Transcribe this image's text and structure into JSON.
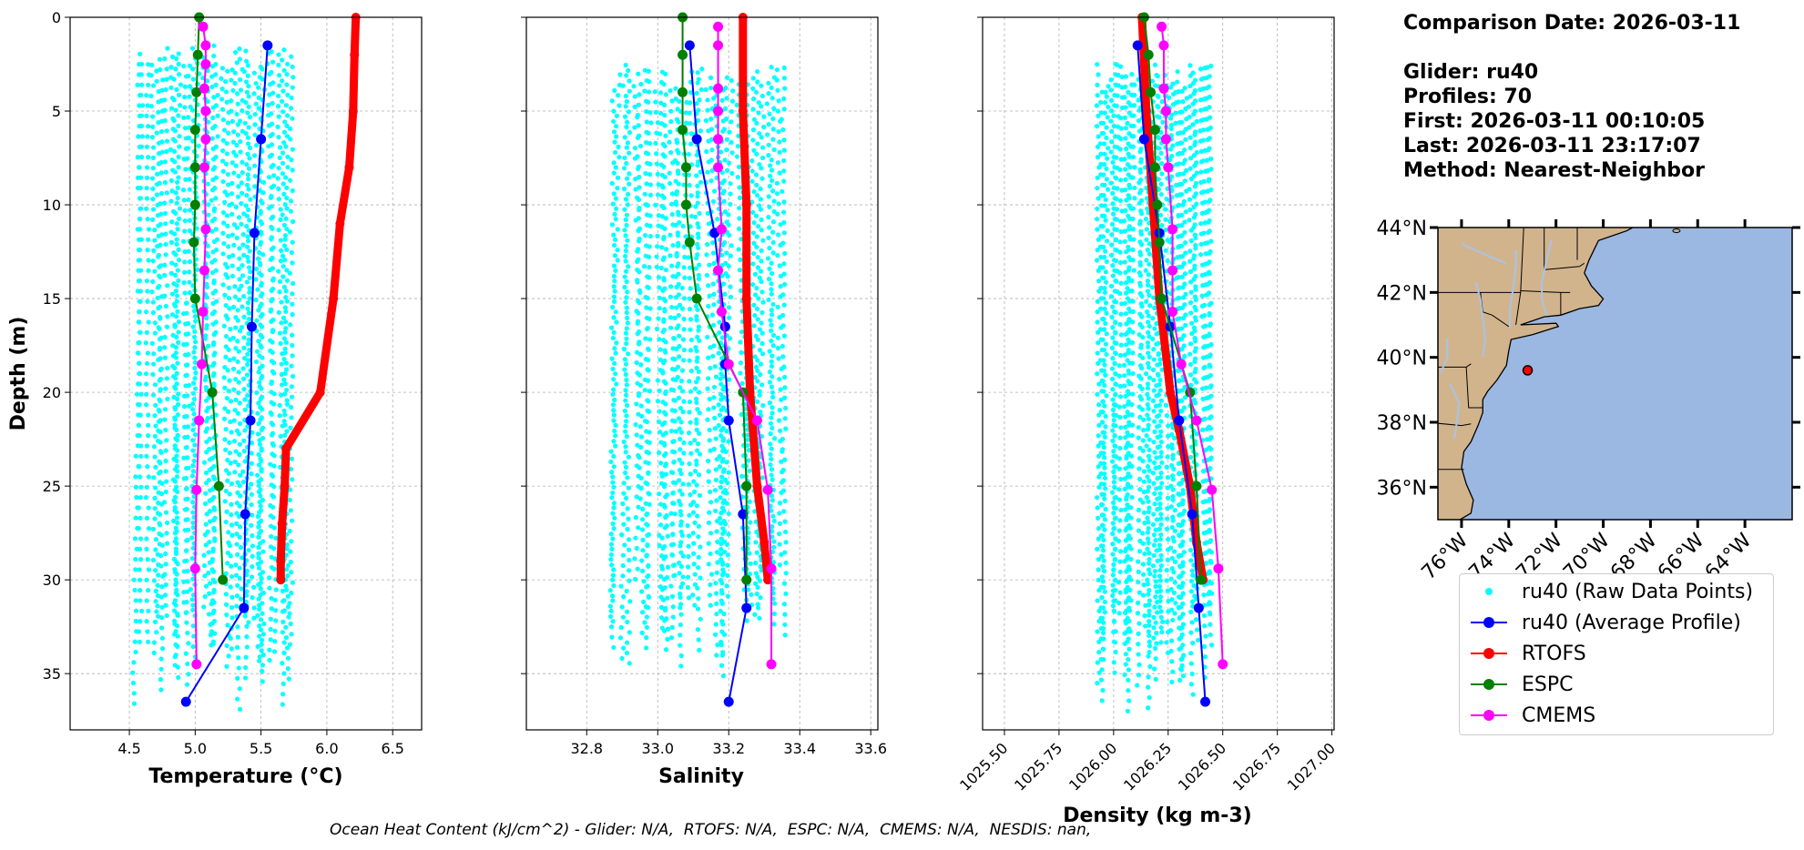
{
  "info": {
    "comparison_date": "Comparison Date: 2026-03-11",
    "glider": "Glider: ru40",
    "profiles": "Profiles: 70",
    "first": "First: 2026-03-11 00:10:05",
    "last": "Last: 2026-03-11 23:17:07",
    "method": "Method: Nearest-Neighbor"
  },
  "caption": "Ocean Heat Content (kJ/cm^2) - Glider: N/A,  RTOFS: N/A,  ESPC: N/A,  CMEMS: N/A,  NESDIS: nan,",
  "colors": {
    "raw": "#00ffff",
    "glider": "#0000ff",
    "rtofs": "#ff0000",
    "espc": "#008000",
    "cmems": "#ff00ff"
  },
  "legend": [
    {
      "label": "ru40 (Raw Data Points)",
      "key": "raw"
    },
    {
      "label": "ru40 (Average Profile)",
      "key": "glider"
    },
    {
      "label": "RTOFS",
      "key": "rtofs"
    },
    {
      "label": "ESPC",
      "key": "espc"
    },
    {
      "label": "CMEMS",
      "key": "cmems"
    }
  ],
  "chart_data": [
    {
      "type": "line",
      "title": "",
      "xlabel": "Temperature (°C)",
      "ylabel": "Depth (m)",
      "xlim": [
        4.05,
        6.72
      ],
      "ylim": [
        38,
        0
      ],
      "xticks": [
        4.5,
        5.0,
        5.5,
        6.0,
        6.5
      ],
      "xtick_labels": [
        "4.5",
        "5.0",
        "5.5",
        "6.0",
        "6.5"
      ],
      "yticks": [
        0,
        5,
        10,
        15,
        20,
        25,
        30,
        35
      ],
      "grid": true,
      "raw_band": {
        "x_range": [
          4.55,
          5.75
        ],
        "depth_range": [
          1.5,
          37.5
        ]
      },
      "series": [
        {
          "name": "ru40 (Average Profile)",
          "key": "glider",
          "x": [
            5.55,
            5.5,
            5.45,
            5.43,
            5.42,
            5.38,
            5.37,
            4.93
          ],
          "depth": [
            1.5,
            6.5,
            11.5,
            16.5,
            21.5,
            26.5,
            31.5,
            36.5
          ]
        },
        {
          "name": "RTOFS",
          "key": "rtofs",
          "x": [
            6.22,
            6.21,
            6.2,
            6.17,
            6.1,
            6.05,
            5.95,
            5.69,
            5.68,
            5.66,
            5.65,
            5.65
          ],
          "depth": [
            0,
            2,
            5,
            8,
            11,
            15,
            20,
            23,
            25,
            27,
            29,
            30
          ]
        },
        {
          "name": "ESPC",
          "key": "espc",
          "x": [
            5.03,
            5.02,
            5.01,
            5.0,
            5.0,
            5.0,
            4.99,
            5.0,
            5.13,
            5.18,
            5.21
          ],
          "depth": [
            0,
            2,
            4,
            6,
            8,
            10,
            12,
            15,
            20,
            25,
            30
          ]
        },
        {
          "name": "CMEMS",
          "key": "cmems",
          "x": [
            5.06,
            5.08,
            5.08,
            5.07,
            5.08,
            5.08,
            5.07,
            5.08,
            5.07,
            5.06,
            5.05,
            5.03,
            5.01,
            5.0,
            5.01
          ],
          "depth": [
            0.5,
            1.5,
            2.5,
            3.8,
            5.0,
            6.5,
            8.0,
            11.3,
            13.5,
            15.7,
            18.5,
            21.5,
            25.2,
            29.4,
            34.5
          ]
        }
      ]
    },
    {
      "type": "line",
      "title": "",
      "xlabel": "Salinity",
      "ylabel": "",
      "xlim": [
        32.63,
        33.62
      ],
      "ylim": [
        38,
        0
      ],
      "xticks": [
        32.8,
        33.0,
        33.2,
        33.4,
        33.6
      ],
      "xtick_labels": [
        "32.8",
        "33.0",
        "33.2",
        "33.4",
        "33.6"
      ],
      "yticks": [
        0,
        5,
        10,
        15,
        20,
        25,
        30,
        35
      ],
      "grid": true,
      "raw_band": {
        "x_range": [
          32.87,
          33.36
        ],
        "depth_range": [
          2.5,
          35.5
        ]
      },
      "series": [
        {
          "name": "ru40 (Average Profile)",
          "key": "glider",
          "x": [
            33.09,
            33.11,
            33.16,
            33.19,
            33.19,
            33.2,
            33.24,
            33.25,
            33.2
          ],
          "depth": [
            1.5,
            6.5,
            11.5,
            16.5,
            18.5,
            21.5,
            26.5,
            31.5,
            36.5
          ]
        },
        {
          "name": "RTOFS",
          "key": "rtofs",
          "x": [
            33.24,
            33.24,
            33.25,
            33.25,
            33.26,
            33.28,
            33.3,
            33.31
          ],
          "depth": [
            0,
            5,
            10,
            15,
            20,
            25,
            28,
            30
          ]
        },
        {
          "name": "ESPC",
          "key": "espc",
          "x": [
            33.07,
            33.07,
            33.07,
            33.07,
            33.08,
            33.08,
            33.09,
            33.11,
            33.24,
            33.25,
            33.25
          ],
          "depth": [
            0,
            2,
            4,
            6,
            8,
            10,
            12,
            15,
            20,
            25,
            30
          ]
        },
        {
          "name": "CMEMS",
          "key": "cmems",
          "x": [
            33.17,
            33.17,
            33.17,
            33.17,
            33.17,
            33.17,
            33.18,
            33.17,
            33.18,
            33.2,
            33.28,
            33.31,
            33.32,
            33.32
          ],
          "depth": [
            0.5,
            1.5,
            3.8,
            5.0,
            6.5,
            8.0,
            11.3,
            13.5,
            15.7,
            18.5,
            21.5,
            25.2,
            29.4,
            34.5
          ]
        }
      ]
    },
    {
      "type": "line",
      "title": "",
      "xlabel": "Density (kg m-3)",
      "ylabel": "",
      "xlim": [
        1025.4,
        1027.01
      ],
      "ylim": [
        38,
        0
      ],
      "xticks": [
        1025.5,
        1025.75,
        1026.0,
        1026.25,
        1026.5,
        1026.75,
        1027.0
      ],
      "xtick_labels": [
        "1025.50",
        "1025.75",
        "1026.00",
        "1026.25",
        "1026.50",
        "1026.75",
        "1027.00"
      ],
      "yticks": [
        0,
        5,
        10,
        15,
        20,
        25,
        30,
        35
      ],
      "grid": true,
      "raw_band": {
        "x_range": [
          1025.92,
          1026.45
        ],
        "depth_range": [
          2.5,
          37.5
        ]
      },
      "series": [
        {
          "name": "ru40 (Average Profile)",
          "key": "glider",
          "x": [
            1026.11,
            1026.14,
            1026.21,
            1026.26,
            1026.3,
            1026.36,
            1026.39,
            1026.42
          ],
          "depth": [
            1.5,
            6.5,
            11.5,
            16.5,
            21.5,
            26.5,
            31.5,
            36.5
          ]
        },
        {
          "name": "RTOFS",
          "key": "rtofs",
          "x": [
            1026.13,
            1026.15,
            1026.18,
            1026.21,
            1026.26,
            1026.3,
            1026.35,
            1026.38,
            1026.41
          ],
          "depth": [
            0,
            5,
            10,
            15,
            20,
            22,
            25,
            28,
            30
          ]
        },
        {
          "name": "ESPC",
          "key": "espc",
          "x": [
            1026.14,
            1026.16,
            1026.17,
            1026.19,
            1026.19,
            1026.2,
            1026.21,
            1026.22,
            1026.35,
            1026.38,
            1026.4
          ],
          "depth": [
            0,
            2,
            4,
            6,
            8,
            10,
            12,
            15,
            20,
            25,
            30
          ]
        },
        {
          "name": "CMEMS",
          "key": "cmems",
          "x": [
            1026.22,
            1026.23,
            1026.23,
            1026.24,
            1026.24,
            1026.25,
            1026.27,
            1026.27,
            1026.27,
            1026.31,
            1026.38,
            1026.45,
            1026.48,
            1026.5
          ],
          "depth": [
            0.5,
            1.5,
            3.8,
            5.0,
            6.5,
            8.0,
            11.3,
            13.5,
            15.7,
            18.5,
            21.5,
            25.2,
            29.4,
            34.5
          ]
        }
      ]
    }
  ],
  "map": {
    "lon_range": [
      -77.0,
      -62.0
    ],
    "lat_range": [
      35.0,
      44.0
    ],
    "lat_ticks": [
      36,
      38,
      40,
      42,
      44
    ],
    "lat_labels": [
      "36°N",
      "38°N",
      "40°N",
      "42°N",
      "44°N"
    ],
    "lon_ticks": [
      -76,
      -74,
      -72,
      -70,
      -68,
      -66,
      -64
    ],
    "lon_labels": [
      "76°W",
      "74°W",
      "72°W",
      "70°W",
      "68°W",
      "66°W",
      "64°W"
    ],
    "land_color": "#d2b48c",
    "ocean_color": "#9bb8e2",
    "glider_position": {
      "lon": -73.2,
      "lat": 39.6
    }
  }
}
